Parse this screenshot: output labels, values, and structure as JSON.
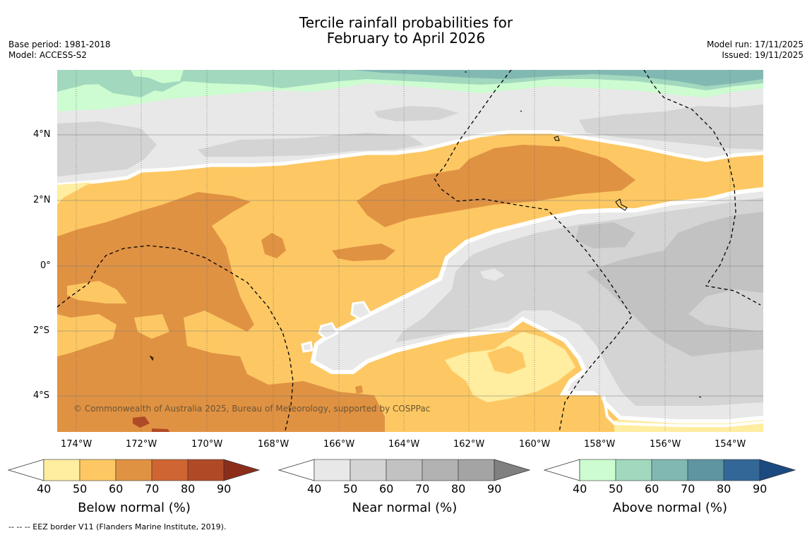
{
  "title": {
    "line1": "Tercile rainfall probabilities for",
    "line2": "February to April 2026"
  },
  "meta_left": {
    "base_period": "Base period: 1981-2018",
    "model": "Model: ACCESS-S2"
  },
  "meta_right": {
    "model_run": "Model run: 17/11/2025",
    "issued": "Issued: 19/11/2025"
  },
  "map": {
    "lat_ticks": [
      "4°N",
      "2°N",
      "0°",
      "2°S",
      "4°S"
    ],
    "lon_ticks": [
      "174°W",
      "172°W",
      "170°W",
      "168°W",
      "166°W",
      "164°W",
      "162°W",
      "160°W",
      "158°W",
      "156°W",
      "154°W"
    ],
    "copyright": "© Commonwealth of Australia 2025, Bureau of Meteorology, supported by COSPPac"
  },
  "colorbars": {
    "below": {
      "title": "Below normal (%)",
      "ticks": [
        "40",
        "50",
        "60",
        "70",
        "80",
        "90"
      ],
      "colors": [
        "#ffffff",
        "#ffeda0",
        "#fdc863",
        "#e09243",
        "#cf6533",
        "#b04a26",
        "#8c2d1a"
      ]
    },
    "near": {
      "title": "Near normal (%)",
      "ticks": [
        "40",
        "50",
        "60",
        "70",
        "80",
        "90"
      ],
      "colors": [
        "#ffffff",
        "#e8e8e8",
        "#d4d4d4",
        "#c2c2c2",
        "#b2b2b2",
        "#a4a4a4",
        "#808080"
      ]
    },
    "above": {
      "title": "Above normal (%)",
      "ticks": [
        "40",
        "50",
        "60",
        "70",
        "80",
        "90"
      ],
      "colors": [
        "#ffffff",
        "#ccfcd0",
        "#a2d8be",
        "#82b8b2",
        "#5e95a0",
        "#336797",
        "#1b4a80"
      ]
    }
  },
  "footnote": "--  --  -- EEZ border V11 (Flanders Marine Institute, 2019)."
}
